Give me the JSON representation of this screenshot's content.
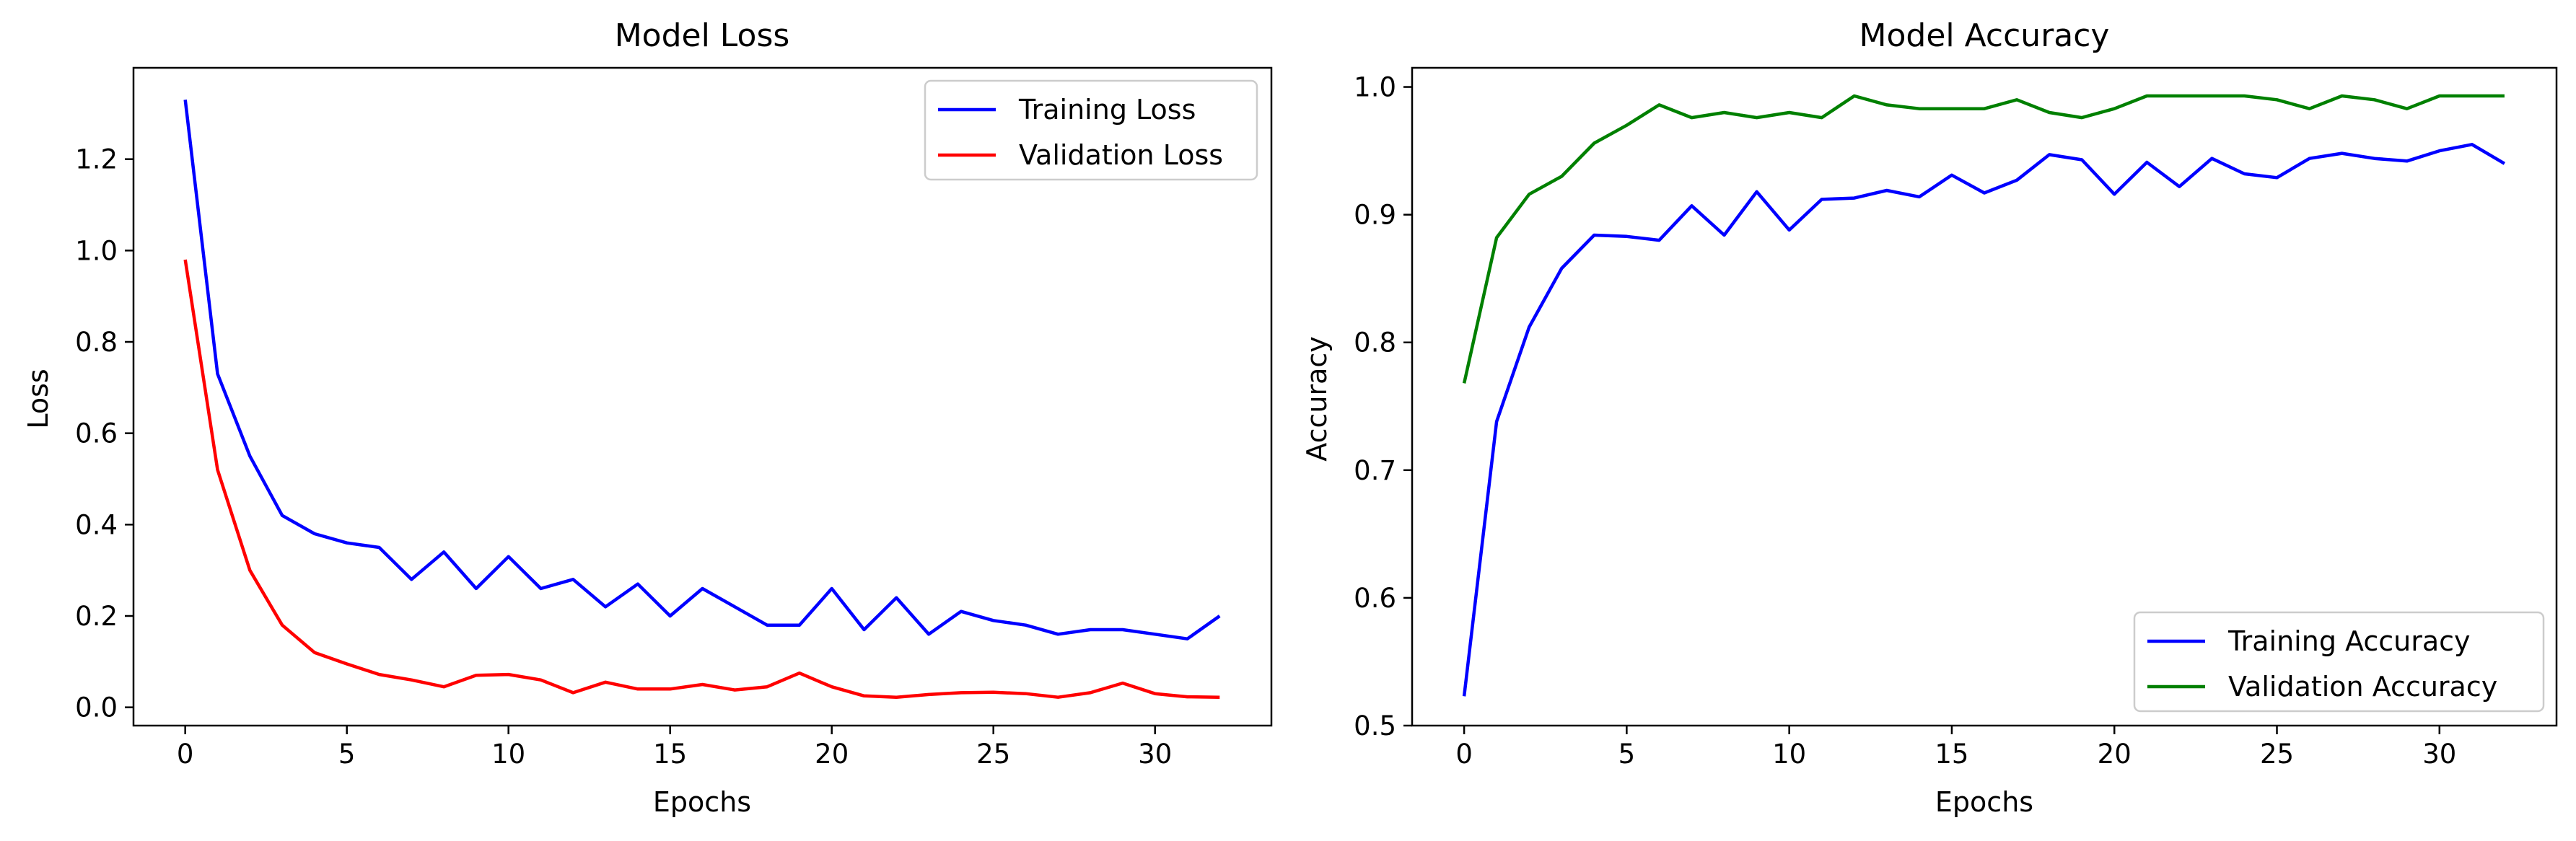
{
  "chart_data": [
    {
      "type": "line",
      "title": "Model Loss",
      "xlabel": "Epochs",
      "ylabel": "Loss",
      "xlim": [
        -1.6,
        33.6
      ],
      "ylim": [
        -0.04,
        1.4
      ],
      "xticks": [
        0,
        5,
        10,
        15,
        20,
        25,
        30
      ],
      "yticks": [
        0.0,
        0.2,
        0.4,
        0.6,
        0.8,
        1.0,
        1.2
      ],
      "ytick_labels": [
        "0.0",
        "0.2",
        "0.4",
        "0.6",
        "0.8",
        "1.0",
        "1.2"
      ],
      "grid": false,
      "legend": "top-right",
      "x": [
        0,
        1,
        2,
        3,
        4,
        5,
        6,
        7,
        8,
        9,
        10,
        11,
        12,
        13,
        14,
        15,
        16,
        17,
        18,
        19,
        20,
        21,
        22,
        23,
        24,
        25,
        26,
        27,
        28,
        29,
        30,
        31,
        32
      ],
      "series": [
        {
          "name": "Training Loss",
          "color": "#0000ff",
          "values": [
            1.33,
            0.73,
            0.55,
            0.42,
            0.38,
            0.36,
            0.35,
            0.28,
            0.34,
            0.26,
            0.33,
            0.26,
            0.28,
            0.22,
            0.27,
            0.2,
            0.26,
            0.22,
            0.18,
            0.18,
            0.26,
            0.17,
            0.24,
            0.16,
            0.21,
            0.19,
            0.18,
            0.16,
            0.17,
            0.17,
            0.16,
            0.15,
            0.2
          ]
        },
        {
          "name": "Validation Loss",
          "color": "#ff0000",
          "values": [
            0.98,
            0.52,
            0.3,
            0.18,
            0.12,
            0.095,
            0.072,
            0.06,
            0.045,
            0.07,
            0.072,
            0.06,
            0.032,
            0.055,
            0.04,
            0.04,
            0.05,
            0.038,
            0.045,
            0.075,
            0.045,
            0.025,
            0.022,
            0.028,
            0.032,
            0.033,
            0.03,
            0.022,
            0.032,
            0.053,
            0.03,
            0.023,
            0.022
          ]
        }
      ]
    },
    {
      "type": "line",
      "title": "Model Accuracy",
      "xlabel": "Epochs",
      "ylabel": "Accuracy",
      "xlim": [
        -1.6,
        33.6
      ],
      "ylim": [
        0.5,
        1.015
      ],
      "xticks": [
        0,
        5,
        10,
        15,
        20,
        25,
        30
      ],
      "yticks": [
        0.5,
        0.6,
        0.7,
        0.8,
        0.9,
        1.0
      ],
      "ytick_labels": [
        "0.5",
        "0.6",
        "0.7",
        "0.8",
        "0.9",
        "1.0"
      ],
      "grid": false,
      "legend": "bottom-right",
      "x": [
        0,
        1,
        2,
        3,
        4,
        5,
        6,
        7,
        8,
        9,
        10,
        11,
        12,
        13,
        14,
        15,
        16,
        17,
        18,
        19,
        20,
        21,
        22,
        23,
        24,
        25,
        26,
        27,
        28,
        29,
        30,
        31,
        32
      ],
      "series": [
        {
          "name": "Training Accuracy",
          "color": "#0000ff",
          "values": [
            0.523,
            0.738,
            0.812,
            0.858,
            0.884,
            0.883,
            0.88,
            0.907,
            0.884,
            0.918,
            0.888,
            0.912,
            0.913,
            0.919,
            0.914,
            0.931,
            0.917,
            0.927,
            0.947,
            0.943,
            0.916,
            0.941,
            0.922,
            0.944,
            0.932,
            0.929,
            0.944,
            0.948,
            0.944,
            0.942,
            0.95,
            0.955,
            0.94
          ]
        },
        {
          "name": "Validation Accuracy",
          "color": "#008000",
          "values": [
            0.768,
            0.882,
            0.916,
            0.93,
            0.956,
            0.97,
            0.986,
            0.976,
            0.98,
            0.976,
            0.98,
            0.976,
            0.993,
            0.986,
            0.983,
            0.983,
            0.983,
            0.99,
            0.98,
            0.976,
            0.983,
            0.993,
            0.993,
            0.993,
            0.993,
            0.99,
            0.983,
            0.993,
            0.99,
            0.983,
            0.993,
            0.993,
            0.993
          ]
        }
      ]
    }
  ]
}
